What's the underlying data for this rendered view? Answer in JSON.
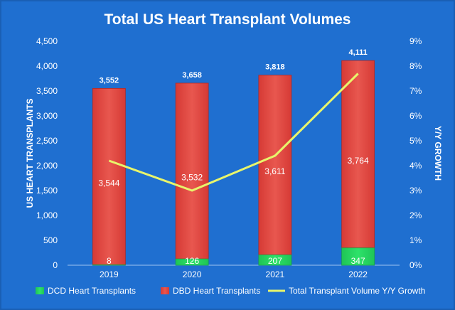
{
  "colors": {
    "background": "#1f6fd0",
    "dbd": "#d63a35",
    "dcd": "#2ee26a",
    "growth_line": "#e8f56b",
    "text": "#ffffff"
  },
  "chart_data": {
    "type": "bar",
    "title": "Total US Heart Transplant Volumes",
    "categories": [
      "2019",
      "2020",
      "2021",
      "2022"
    ],
    "stacked": true,
    "series": [
      {
        "name": "DCD Heart Transplants",
        "values": [
          8,
          126,
          207,
          347
        ],
        "labels": [
          "8",
          "126",
          "207",
          "347"
        ]
      },
      {
        "name": "DBD Heart Transplants",
        "values": [
          3544,
          3532,
          3611,
          3764
        ],
        "labels": [
          "3,544",
          "3,532",
          "3,611",
          "3,764"
        ]
      }
    ],
    "totals": [
      3552,
      3658,
      3818,
      4111
    ],
    "total_labels": [
      "3,552",
      "3,658",
      "3,818",
      "4,111"
    ],
    "line_series": {
      "name": "Total Transplant Volume Y/Y Growth",
      "axis": "right",
      "values": [
        4.2,
        3.0,
        4.4,
        7.7
      ]
    },
    "ylabel": "US HEART TRANSPLANTS",
    "ylim": [
      0,
      4500
    ],
    "y_ticks": [
      "0",
      "500",
      "1,000",
      "1,500",
      "2,000",
      "2,500",
      "3,000",
      "3,500",
      "4,000",
      "4,500"
    ],
    "y2label": "Y/Y GROWTH",
    "y2lim": [
      0,
      9
    ],
    "y2_ticks": [
      "0%",
      "1%",
      "2%",
      "3%",
      "4%",
      "5%",
      "6%",
      "7%",
      "8%",
      "9%"
    ],
    "legend_position": "bottom",
    "grid": false
  }
}
